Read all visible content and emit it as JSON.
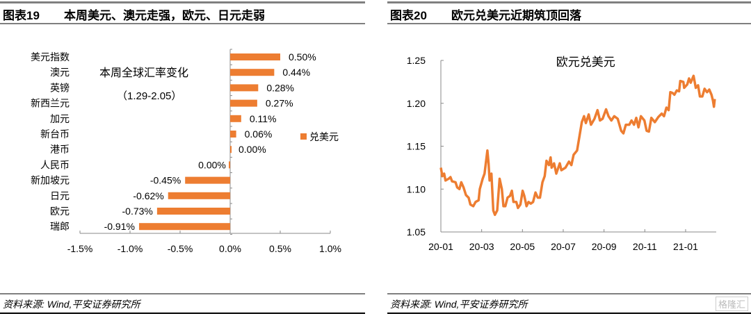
{
  "left": {
    "title_num": "图表19",
    "title_text": "本周美元、澳元走强，欧元、日元走弱",
    "source": "资料来源: Wind,平安证券研究所"
  },
  "right": {
    "title_num": "图表20",
    "title_text": "欧元兑美元近期筑顶回落",
    "source": "资料来源: Wind,平安证券研究所",
    "watermark": "格隆汇"
  },
  "chart_data": [
    {
      "type": "bar",
      "orientation": "horizontal",
      "annotation": [
        "本周全球汇率变化",
        "（1.29-2.05）"
      ],
      "legend": "兑美元",
      "legend_placement": "right",
      "color": "#ED7D31",
      "categories": [
        "美元指数",
        "澳元",
        "英镑",
        "新西兰元",
        "加元",
        "新台币",
        "港币",
        "人民币",
        "新加坡元",
        "日元",
        "欧元",
        "瑞郎"
      ],
      "values": [
        0.5,
        0.44,
        0.28,
        0.27,
        0.11,
        0.06,
        0.0,
        -0.001,
        -0.45,
        -0.62,
        -0.73,
        -0.91
      ],
      "labels": [
        "0.50%",
        "0.44%",
        "0.28%",
        "0.27%",
        "0.11%",
        "0.06%",
        "0.00%",
        "0.00%",
        "-0.45%",
        "-0.62%",
        "-0.73%",
        "-0.91%"
      ],
      "xlim": [
        -1.5,
        1.0
      ],
      "xticks": [
        -1.5,
        -1.0,
        -0.5,
        0.0,
        0.5,
        1.0
      ],
      "xtick_labels": [
        "-1.5%",
        "-1.0%",
        "-0.5%",
        "0.0%",
        "0.5%",
        "1.0%"
      ]
    },
    {
      "type": "line",
      "title": "欧元兑美元",
      "color": "#ED7D31",
      "x_unit": "months since 2020-01",
      "xticks": [
        0,
        2,
        4,
        6,
        8,
        10,
        12
      ],
      "xtick_labels": [
        "20-01",
        "20-03",
        "20-05",
        "20-07",
        "20-09",
        "20-11",
        "21-01"
      ],
      "ylim": [
        1.05,
        1.25
      ],
      "yticks": [
        1.05,
        1.1,
        1.15,
        1.2,
        1.25
      ],
      "ytick_labels": [
        "1.05",
        "1.10",
        "1.15",
        "1.20",
        "1.25"
      ],
      "x": [
        0,
        0.07,
        0.16,
        0.23,
        0.38,
        0.47,
        0.55,
        0.72,
        0.8,
        0.91,
        1.0,
        1.11,
        1.23,
        1.36,
        1.45,
        1.59,
        1.7,
        1.85,
        1.91,
        2.05,
        2.14,
        2.23,
        2.28,
        2.34,
        2.39,
        2.48,
        2.57,
        2.65,
        2.76,
        2.88,
        2.99,
        3.07,
        3.16,
        3.27,
        3.39,
        3.48,
        3.56,
        3.7,
        3.78,
        3.9,
        4.01,
        4.09,
        4.2,
        4.3,
        4.41,
        4.52,
        4.64,
        4.75,
        4.86,
        4.98,
        5.09,
        5.18,
        5.3,
        5.38,
        5.43,
        5.55,
        5.66,
        5.83,
        5.91,
        6.11,
        6.28,
        6.4,
        6.51,
        6.68,
        6.8,
        6.91,
        7.02,
        7.11,
        7.25,
        7.36,
        7.53,
        7.68,
        7.8,
        7.93,
        8.1,
        8.22,
        8.36,
        8.5,
        8.67,
        8.84,
        8.95,
        9.07,
        9.24,
        9.35,
        9.47,
        9.58,
        9.69,
        9.81,
        9.98,
        10.09,
        10.2,
        10.32,
        10.49,
        10.66,
        10.83,
        10.94,
        11.06,
        11.17,
        11.25,
        11.36,
        11.45,
        11.57,
        11.68,
        11.74,
        11.89,
        11.93,
        12.08,
        12.17,
        12.25,
        12.39,
        12.5,
        12.61,
        12.7,
        12.82,
        12.93,
        13.05,
        13.16,
        13.27,
        13.34,
        13.39,
        13.43
      ],
      "y": [
        1.125,
        1.115,
        1.118,
        1.11,
        1.112,
        1.114,
        1.109,
        1.108,
        1.102,
        1.1,
        1.108,
        1.102,
        1.093,
        1.09,
        1.082,
        1.08,
        1.085,
        1.087,
        1.1,
        1.112,
        1.118,
        1.135,
        1.145,
        1.13,
        1.11,
        1.118,
        1.075,
        1.07,
        1.075,
        1.112,
        1.1,
        1.08,
        1.08,
        1.09,
        1.092,
        1.098,
        1.085,
        1.085,
        1.078,
        1.082,
        1.098,
        1.092,
        1.08,
        1.085,
        1.083,
        1.085,
        1.096,
        1.09,
        1.09,
        1.108,
        1.115,
        1.133,
        1.128,
        1.137,
        1.125,
        1.13,
        1.118,
        1.13,
        1.122,
        1.125,
        1.132,
        1.128,
        1.14,
        1.145,
        1.162,
        1.178,
        1.185,
        1.177,
        1.187,
        1.175,
        1.182,
        1.192,
        1.18,
        1.182,
        1.193,
        1.185,
        1.18,
        1.185,
        1.182,
        1.168,
        1.165,
        1.175,
        1.175,
        1.18,
        1.175,
        1.183,
        1.172,
        1.185,
        1.18,
        1.168,
        1.167,
        1.183,
        1.178,
        1.184,
        1.188,
        1.185,
        1.195,
        1.192,
        1.213,
        1.212,
        1.21,
        1.215,
        1.214,
        1.226,
        1.225,
        1.218,
        1.222,
        1.229,
        1.224,
        1.232,
        1.218,
        1.221,
        1.208,
        1.208,
        1.217,
        1.213,
        1.216,
        1.21,
        1.203,
        1.196,
        1.205
      ]
    }
  ]
}
